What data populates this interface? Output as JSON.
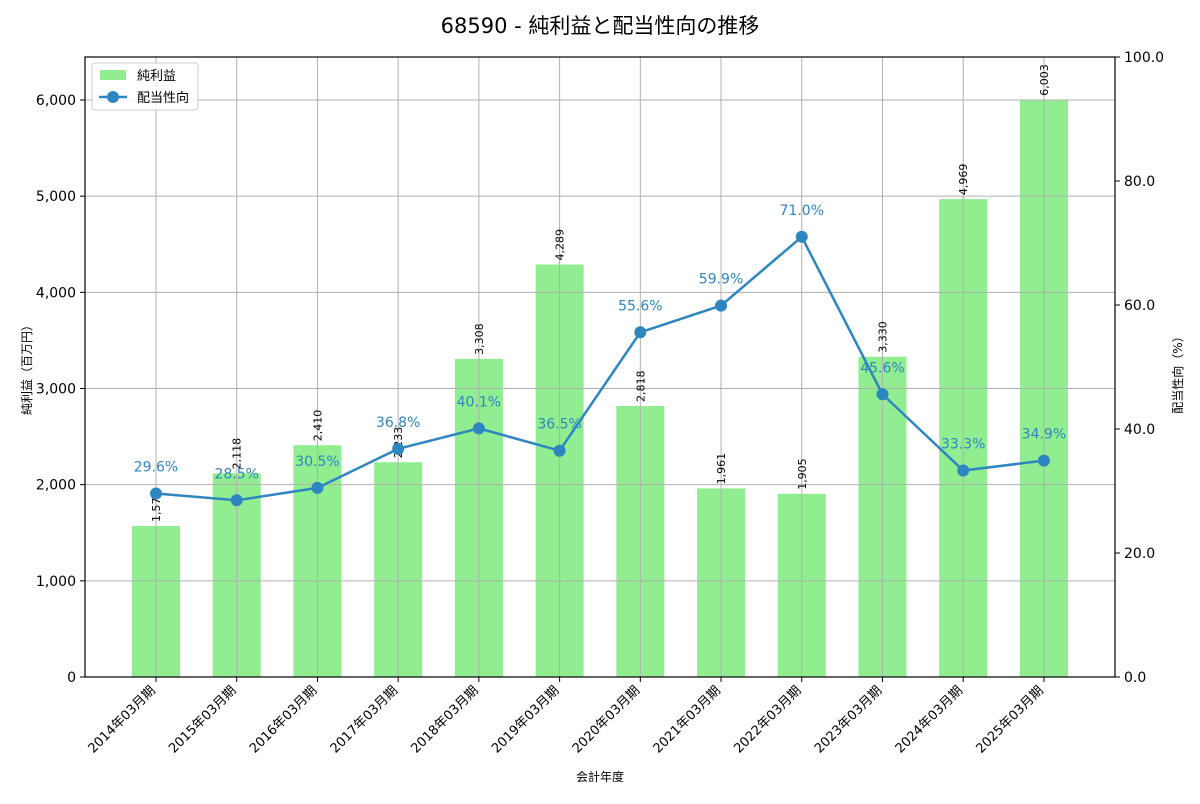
{
  "chart_data": {
    "type": "bar",
    "title": "68590 - 純利益と配当性向の推移",
    "xlabel": "会計年度",
    "ylabel": "純利益（百万円）",
    "y2label": "配当性向（%）",
    "categories": [
      "2014年03月期",
      "2015年03月期",
      "2016年03月期",
      "2017年03月期",
      "2018年03月期",
      "2019年03月期",
      "2020年03月期",
      "2021年03月期",
      "2022年03月期",
      "2023年03月期",
      "2024年03月期",
      "2025年03月期"
    ],
    "series": [
      {
        "name": "純利益",
        "type": "bar",
        "axis": "left",
        "color": "#90ee90",
        "values": [
          1570,
          2118,
          2410,
          2233,
          3308,
          4289,
          2818,
          1961,
          1905,
          3330,
          4969,
          6003
        ],
        "labels": [
          "1,570",
          "2,118",
          "2,410",
          "2,233",
          "3,308",
          "4,289",
          "2,818",
          "1,961",
          "1,905",
          "3,330",
          "4,969",
          "6,003"
        ]
      },
      {
        "name": "配当性向",
        "type": "line",
        "axis": "right",
        "color": "#2e86c1",
        "values": [
          29.6,
          28.5,
          30.5,
          36.8,
          40.1,
          36.5,
          55.6,
          59.9,
          71.0,
          45.6,
          33.3,
          34.9
        ],
        "labels": [
          "29.6%",
          "28.5%",
          "30.5%",
          "36.8%",
          "40.1%",
          "36.5%",
          "55.6%",
          "59.9%",
          "71.0%",
          "45.6%",
          "33.3%",
          "34.9%"
        ]
      }
    ],
    "ylim": [
      0,
      6447
    ],
    "y2lim": [
      0,
      100
    ],
    "yticks": [
      0,
      1000,
      2000,
      3000,
      4000,
      5000,
      6000
    ],
    "ytick_labels": [
      "0",
      "1,000",
      "2,000",
      "3,000",
      "4,000",
      "5,000",
      "6,000"
    ],
    "y2ticks": [
      0,
      20,
      40,
      60,
      80,
      100
    ],
    "y2tick_labels": [
      "0.0",
      "20.0",
      "40.0",
      "60.0",
      "80.0",
      "100.0"
    ],
    "grid": true,
    "legend_position": "upper left"
  },
  "legend": {
    "items": [
      {
        "label": "純利益",
        "kind": "bar-swatch"
      },
      {
        "label": "配当性向",
        "kind": "line-marker"
      }
    ]
  }
}
